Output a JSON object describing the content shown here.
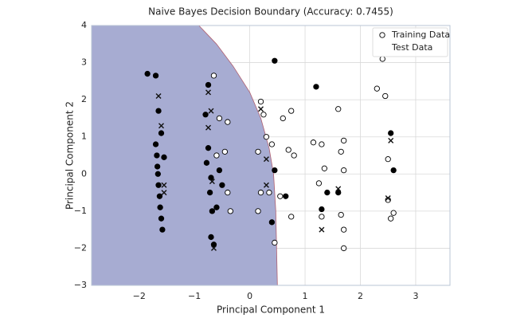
{
  "chart_data": {
    "type": "scatter",
    "title": "Naive Bayes Decision Boundary (Accuracy: 0.7455)",
    "x_label": "Principal Component 1",
    "y_label": "Principal Component 2",
    "xlim": [
      -2.86,
      3.62
    ],
    "ylim": [
      -3,
      4
    ],
    "xticks": [
      {
        "value": -2,
        "label": "−2"
      },
      {
        "value": -1,
        "label": "−1"
      },
      0,
      1,
      2,
      3
    ],
    "yticks": [
      {
        "value": -3,
        "label": "−3"
      },
      {
        "value": -2,
        "label": "−2"
      },
      {
        "value": -1,
        "label": "−1"
      },
      0,
      1,
      2,
      3,
      4
    ],
    "grid": true,
    "legend": "upper right",
    "decision_region": {
      "color": "#a7acd2",
      "edge_color": "#b06070",
      "x": [
        -2.86,
        -0.92,
        -0.6,
        -0.3,
        0,
        0.2,
        0.35,
        0.43,
        0.47,
        0.5,
        -2.86
      ],
      "y": [
        4,
        4,
        3.5,
        2.9,
        2.2,
        1.5,
        0.7,
        0,
        -1,
        -3,
        -3
      ]
    },
    "series": [
      {
        "name": "Training Data",
        "marker": "o",
        "edge_color": "#000000",
        "x": [
          -1.85,
          -1.7,
          -1.65,
          -1.7,
          -1.68,
          -1.67,
          -1.66,
          -1.65,
          -1.63,
          -1.62,
          -1.6,
          -1.58,
          -1.55,
          -1.6,
          -0.8,
          -0.75,
          -0.78,
          -0.7,
          -0.72,
          -0.68,
          -0.7,
          -0.65,
          -0.75,
          -0.65,
          -0.55,
          -0.6,
          -0.45,
          -0.4,
          -0.4,
          -0.35,
          -0.55,
          -0.6,
          -0.5,
          0.2,
          0.25,
          0.3,
          0.15,
          0.2,
          0.15,
          0.35,
          0.4,
          0.45,
          0.45,
          0.45,
          0.55,
          0.4,
          0.6,
          0.7,
          0.75,
          0.8,
          0.75,
          0.65,
          1.2,
          1.15,
          1.3,
          1.35,
          1.25,
          1.4,
          1.3,
          1.3,
          1.6,
          1.7,
          1.65,
          1.7,
          1.6,
          1.65,
          1.7,
          1.7,
          2.3,
          2.4,
          2.45,
          2.55,
          2.5,
          2.6,
          2.5,
          2.55,
          2.6
        ],
        "y": [
          2.7,
          2.65,
          1.7,
          0.8,
          0.5,
          0.2,
          0,
          -0.3,
          -0.6,
          -0.9,
          -1.2,
          -1.5,
          0.45,
          1.1,
          1.6,
          0.7,
          0.3,
          -0.1,
          -0.5,
          -1.0,
          -1.7,
          -1.9,
          2.4,
          2.65,
          1.5,
          0.5,
          0.6,
          1.4,
          -0.5,
          -1.0,
          0.1,
          -0.9,
          -0.3,
          1.95,
          1.6,
          1.0,
          0.6,
          -0.5,
          -1.0,
          -0.5,
          -1.3,
          -1.85,
          0.1,
          3.05,
          -0.6,
          0.8,
          1.5,
          0.65,
          1.7,
          0.5,
          -1.15,
          -0.6,
          2.35,
          0.85,
          0.8,
          0.15,
          -0.25,
          -0.5,
          -0.95,
          -1.15,
          1.75,
          0.9,
          0.6,
          0.1,
          -0.5,
          -1.1,
          -1.5,
          -2.0,
          2.3,
          3.1,
          2.1,
          1.1,
          0.4,
          0.1,
          -0.7,
          -1.2,
          -1.05
        ],
        "colors": [
          "black",
          "black",
          "black",
          "black",
          "black",
          "black",
          "black",
          "black",
          "black",
          "black",
          "black",
          "black",
          "black",
          "black",
          "black",
          "black",
          "black",
          "black",
          "black",
          "black",
          "black",
          "black",
          "black",
          "white",
          "white",
          "white",
          "white",
          "white",
          "white",
          "white",
          "black",
          "black",
          "black",
          "white",
          "white",
          "white",
          "white",
          "white",
          "white",
          "white",
          "black",
          "white",
          "black",
          "black",
          "white",
          "white",
          "white",
          "white",
          "white",
          "white",
          "white",
          "black",
          "black",
          "white",
          "white",
          "white",
          "white",
          "black",
          "black",
          "white",
          "white",
          "white",
          "white",
          "white",
          "black",
          "white",
          "white",
          "white",
          "white",
          "white",
          "white",
          "black",
          "white",
          "black",
          "white",
          "white",
          "white"
        ]
      },
      {
        "name": "Test Data",
        "marker": "x",
        "color": "#111111",
        "x": [
          -1.65,
          -1.6,
          -1.55,
          -1.55,
          -0.75,
          -0.7,
          -0.75,
          -0.68,
          -0.65,
          0.2,
          0.3,
          0.3,
          1.3,
          1.6,
          2.5,
          2.55
        ],
        "y": [
          2.1,
          1.3,
          -0.3,
          -0.5,
          2.2,
          1.7,
          1.25,
          -0.2,
          -2.0,
          1.75,
          0.4,
          -0.3,
          -1.5,
          -0.4,
          -0.65,
          0.9
        ]
      }
    ]
  }
}
